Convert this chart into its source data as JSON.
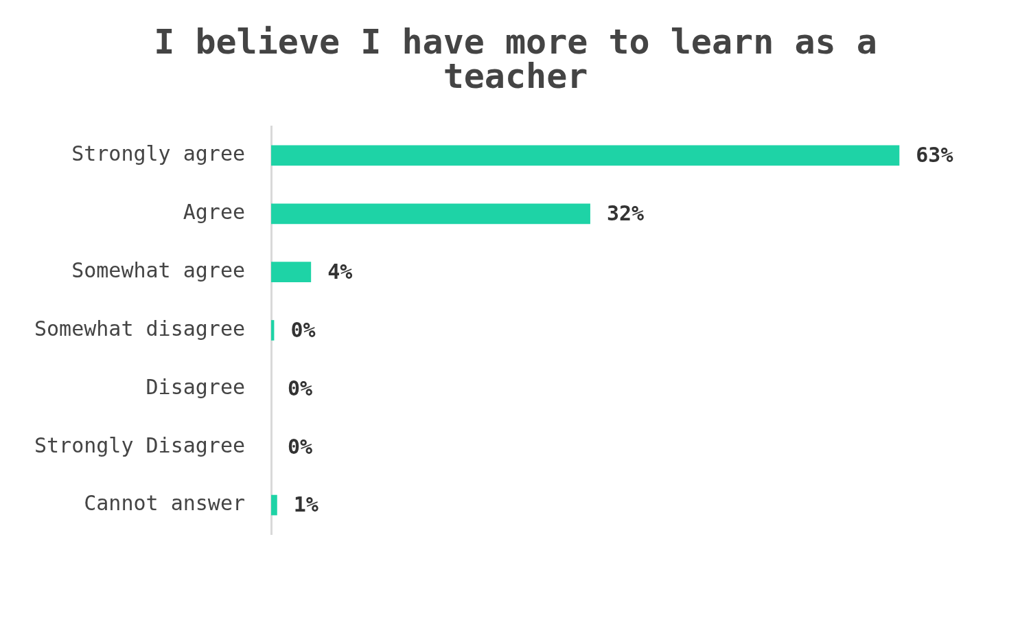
{
  "chart_data": {
    "type": "bar",
    "orientation": "horizontal",
    "title": "I believe I have more to learn as a teacher",
    "categories": [
      "Strongly agree",
      "Agree",
      "Somewhat agree",
      "Somewhat disagree",
      "Disagree",
      "Strongly Disagree",
      "Cannot answer"
    ],
    "values": [
      63,
      32,
      4,
      0.3,
      0,
      0,
      0.6
    ],
    "value_labels": [
      "63%",
      "32%",
      "4%",
      "0%",
      "0%",
      "0%",
      "1%"
    ],
    "color": "#1ed3a6",
    "tick_labels": "y",
    "legend": false
  }
}
